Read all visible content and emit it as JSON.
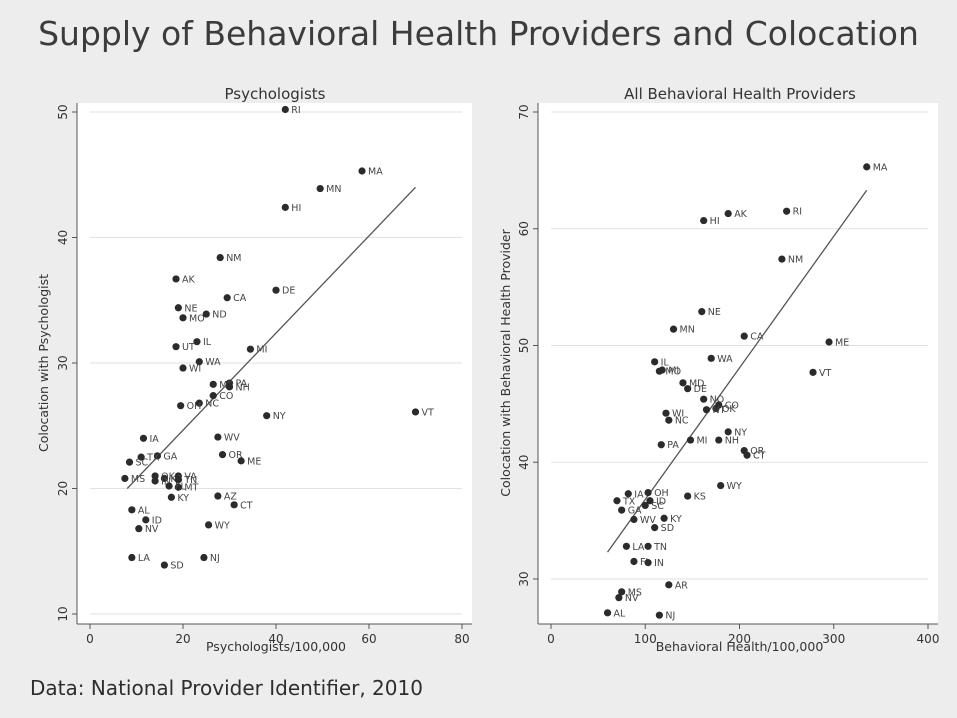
{
  "title": "Supply of Behavioral Health Providers and Colocation",
  "source": "Data: National Provider Identifier, 2010",
  "colors": {
    "background": "#ededed",
    "plot_bg": "#ffffff",
    "marker": "#2b2b2b",
    "text": "#333333",
    "grid": "#e2e2e2"
  },
  "chart_data": [
    {
      "type": "scatter",
      "title": "Psychologists",
      "xlabel": "Psychologists/100,000",
      "ylabel": "Colocation with Psychologist",
      "xlim": [
        0,
        80
      ],
      "ylim": [
        10,
        50
      ],
      "xticks": [
        "0",
        "20",
        "40",
        "60",
        "80"
      ],
      "yticks": [
        "10",
        "20",
        "30",
        "40",
        "50"
      ],
      "grid": true,
      "fit_line": [
        [
          8,
          20
        ],
        [
          70,
          44
        ]
      ],
      "points": [
        {
          "label": "RI",
          "x": 42.0,
          "y": 50.2
        },
        {
          "label": "MA",
          "x": 58.5,
          "y": 45.3
        },
        {
          "label": "MN",
          "x": 49.5,
          "y": 43.9
        },
        {
          "label": "HI",
          "x": 42.0,
          "y": 42.4
        },
        {
          "label": "NM",
          "x": 28.0,
          "y": 38.4
        },
        {
          "label": "AK",
          "x": 18.5,
          "y": 36.7
        },
        {
          "label": "DE",
          "x": 40.0,
          "y": 35.8
        },
        {
          "label": "CA",
          "x": 29.5,
          "y": 35.2
        },
        {
          "label": "NE",
          "x": 19.0,
          "y": 34.4
        },
        {
          "label": "ND",
          "x": 25.0,
          "y": 33.9
        },
        {
          "label": "MO",
          "x": 20.0,
          "y": 33.6
        },
        {
          "label": "IL",
          "x": 23.0,
          "y": 31.7
        },
        {
          "label": "UT",
          "x": 18.5,
          "y": 31.3
        },
        {
          "label": "MI",
          "x": 34.5,
          "y": 31.1
        },
        {
          "label": "WA",
          "x": 23.5,
          "y": 30.1
        },
        {
          "label": "WI",
          "x": 20.0,
          "y": 29.6
        },
        {
          "label": "PA",
          "x": 30.0,
          "y": 28.4
        },
        {
          "label": "ME",
          "x": 26.5,
          "y": 28.3
        },
        {
          "label": "NH",
          "x": 30.0,
          "y": 28.1
        },
        {
          "label": "CO",
          "x": 26.5,
          "y": 27.4
        },
        {
          "label": "NC",
          "x": 23.5,
          "y": 26.8
        },
        {
          "label": "OH",
          "x": 19.5,
          "y": 26.6
        },
        {
          "label": "NY",
          "x": 38.0,
          "y": 25.8
        },
        {
          "label": "VT",
          "x": 70.0,
          "y": 26.1
        },
        {
          "label": "WV",
          "x": 27.5,
          "y": 24.1
        },
        {
          "label": "IA",
          "x": 11.5,
          "y": 24.0
        },
        {
          "label": "OR",
          "x": 28.5,
          "y": 22.7
        },
        {
          "label": "GA",
          "x": 14.5,
          "y": 22.6
        },
        {
          "label": "TX",
          "x": 11.0,
          "y": 22.5
        },
        {
          "label": "ME",
          "x": 32.5,
          "y": 22.2
        },
        {
          "label": "SC",
          "x": 8.5,
          "y": 22.1
        },
        {
          "label": "VA",
          "x": 19.0,
          "y": 21.0
        },
        {
          "label": "OK",
          "x": 14.0,
          "y": 21.0
        },
        {
          "label": "KS",
          "x": 16.0,
          "y": 20.8
        },
        {
          "label": "TN",
          "x": 19.0,
          "y": 20.7
        },
        {
          "label": "IN",
          "x": 14.0,
          "y": 20.6
        },
        {
          "label": "MS",
          "x": 7.5,
          "y": 20.8
        },
        {
          "label": "MT",
          "x": 19.0,
          "y": 20.1
        },
        {
          "label": "FL",
          "x": 17.0,
          "y": 20.2
        },
        {
          "label": "KY",
          "x": 17.5,
          "y": 19.3
        },
        {
          "label": "AZ",
          "x": 27.5,
          "y": 19.4
        },
        {
          "label": "CT",
          "x": 31.0,
          "y": 18.7
        },
        {
          "label": "AL",
          "x": 9.0,
          "y": 18.3
        },
        {
          "label": "ID",
          "x": 12.0,
          "y": 17.5
        },
        {
          "label": "WY",
          "x": 25.5,
          "y": 17.1
        },
        {
          "label": "NV",
          "x": 10.5,
          "y": 16.8
        },
        {
          "label": "LA",
          "x": 9.0,
          "y": 14.5
        },
        {
          "label": "NJ",
          "x": 24.5,
          "y": 14.5
        },
        {
          "label": "SD",
          "x": 16.0,
          "y": 13.9
        }
      ]
    },
    {
      "type": "scatter",
      "title": "All Behavioral Health Providers",
      "xlabel": "Behavioral Health/100,000",
      "ylabel": "Colocation with Behavioral Health Provider",
      "xlim": [
        0,
        400
      ],
      "ylim": [
        27,
        70
      ],
      "xticks": [
        "0",
        "100",
        "200",
        "300",
        "400"
      ],
      "yticks": [
        "30",
        "40",
        "50",
        "60",
        "70"
      ],
      "ytick_values": [
        30,
        40,
        50,
        60,
        70
      ],
      "grid": true,
      "fit_line": [
        [
          60,
          32.3
        ],
        [
          335,
          63.3
        ]
      ],
      "points": [
        {
          "label": "MA",
          "x": 335,
          "y": 65.3
        },
        {
          "label": "AK",
          "x": 188,
          "y": 61.3
        },
        {
          "label": "RI",
          "x": 250,
          "y": 61.5
        },
        {
          "label": "HI",
          "x": 162,
          "y": 60.7
        },
        {
          "label": "NM",
          "x": 245,
          "y": 57.4
        },
        {
          "label": "NE",
          "x": 160,
          "y": 52.9
        },
        {
          "label": "MN",
          "x": 130,
          "y": 51.4
        },
        {
          "label": "CA",
          "x": 205,
          "y": 50.8
        },
        {
          "label": "ME",
          "x": 295,
          "y": 50.3
        },
        {
          "label": "WA",
          "x": 170,
          "y": 48.9
        },
        {
          "label": "IL",
          "x": 110,
          "y": 48.6
        },
        {
          "label": "MO",
          "x": 115,
          "y": 47.8
        },
        {
          "label": "MI",
          "x": 118,
          "y": 47.9
        },
        {
          "label": "VT",
          "x": 278,
          "y": 47.7
        },
        {
          "label": "MD",
          "x": 140,
          "y": 46.8
        },
        {
          "label": "DE",
          "x": 145,
          "y": 46.3
        },
        {
          "label": "NO",
          "x": 162,
          "y": 45.4
        },
        {
          "label": "CO",
          "x": 178,
          "y": 44.9
        },
        {
          "label": "OK",
          "x": 175,
          "y": 44.6
        },
        {
          "label": "NT",
          "x": 165,
          "y": 44.5
        },
        {
          "label": "WI",
          "x": 122,
          "y": 44.2
        },
        {
          "label": "NC",
          "x": 125,
          "y": 43.6
        },
        {
          "label": "NY",
          "x": 188,
          "y": 42.6
        },
        {
          "label": "MI",
          "x": 148,
          "y": 41.9
        },
        {
          "label": "NH",
          "x": 178,
          "y": 41.9
        },
        {
          "label": "PA",
          "x": 117,
          "y": 41.5
        },
        {
          "label": "OR",
          "x": 205,
          "y": 41.0
        },
        {
          "label": "CT",
          "x": 208,
          "y": 40.6
        },
        {
          "label": "WY",
          "x": 180,
          "y": 38.0
        },
        {
          "label": "IA",
          "x": 82,
          "y": 37.3
        },
        {
          "label": "OH",
          "x": 103,
          "y": 37.4
        },
        {
          "label": "KS",
          "x": 145,
          "y": 37.1
        },
        {
          "label": "TX",
          "x": 70,
          "y": 36.7
        },
        {
          "label": "ID",
          "x": 105,
          "y": 36.7
        },
        {
          "label": "SC",
          "x": 100,
          "y": 36.3
        },
        {
          "label": "GA",
          "x": 75,
          "y": 35.9
        },
        {
          "label": "WV",
          "x": 88,
          "y": 35.1
        },
        {
          "label": "KY",
          "x": 120,
          "y": 35.2
        },
        {
          "label": "SD",
          "x": 110,
          "y": 34.4
        },
        {
          "label": "TN",
          "x": 103,
          "y": 32.8
        },
        {
          "label": "LA",
          "x": 80,
          "y": 32.8
        },
        {
          "label": "FL",
          "x": 88,
          "y": 31.5
        },
        {
          "label": "IN",
          "x": 103,
          "y": 31.4
        },
        {
          "label": "AR",
          "x": 125,
          "y": 29.5
        },
        {
          "label": "MS",
          "x": 75,
          "y": 28.9
        },
        {
          "label": "NV",
          "x": 72,
          "y": 28.4
        },
        {
          "label": "AL",
          "x": 60,
          "y": 27.1
        },
        {
          "label": "NJ",
          "x": 115,
          "y": 26.9
        }
      ]
    }
  ]
}
